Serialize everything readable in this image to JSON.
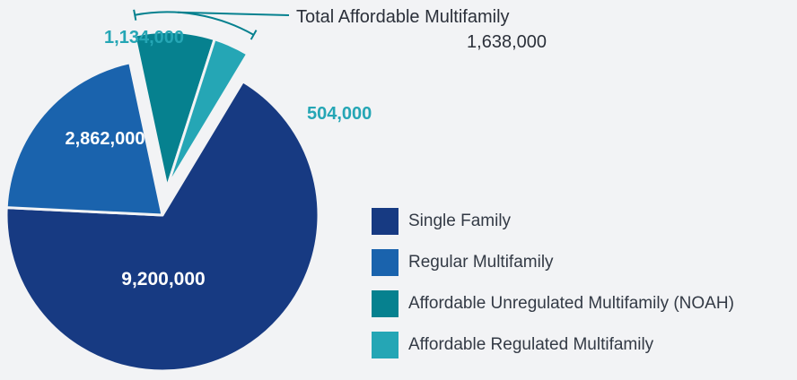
{
  "chart_data": {
    "type": "pie",
    "categories": [
      "Single Family",
      "Regular Multifamily",
      "Affordable Unregulated Multifamily (NOAH)",
      "Affordable Regulated Multifamily"
    ],
    "values": [
      9200000,
      2862000,
      1134000,
      504000
    ],
    "value_labels": [
      "9,200,000",
      "2,862,000",
      "1,134,000",
      "504,000"
    ],
    "colors": [
      "#173a82",
      "#1a63ad",
      "#06818f",
      "#25a6b5"
    ],
    "exploded": [
      false,
      false,
      true,
      true
    ],
    "legend_placement": "bottom-right",
    "annotation": {
      "label": "Total Affordable Multifamily",
      "value": "1,638,000",
      "color": "#06818f"
    }
  }
}
